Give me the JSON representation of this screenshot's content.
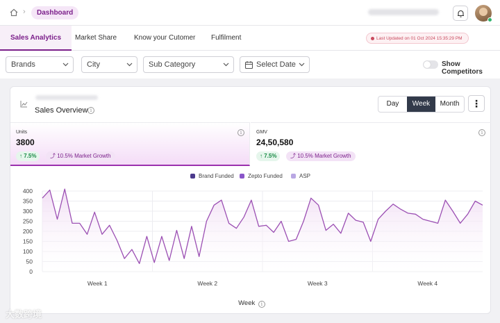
{
  "breadcrumb": {
    "current": "Dashboard",
    "separator": "›"
  },
  "tabs": [
    {
      "label": "Sales Analytics",
      "active": true
    },
    {
      "label": "Market Share",
      "active": false
    },
    {
      "label": "Know your Cutomer",
      "active": false
    },
    {
      "label": "Fulfilment",
      "active": false
    }
  ],
  "last_updated": "Last Updated on 01 Oct 2024 15:35:29 PM",
  "filters": {
    "brands": "Brands",
    "city": "City",
    "sub_category": "Sub Category",
    "date": "Select Date",
    "show_competitors": "Show Competitors",
    "show_competitors_on": false
  },
  "card": {
    "title": "Sales Overview",
    "granularity": [
      "Day",
      "Week",
      "Month"
    ],
    "active_granularity": "Week",
    "more_icon": "⋮"
  },
  "metrics": [
    {
      "label": "Units",
      "value": "3800",
      "change": "7.5%",
      "market_growth": "10.5% Market Growth",
      "selected": true
    },
    {
      "label": "GMV",
      "value": "24,50,580",
      "change": "7.5%",
      "market_growth": "10.5% Market Growth",
      "selected": false
    }
  ],
  "colors": {
    "accent": "#7b1f8a",
    "line": "#9b4fb3",
    "area": "#f1ddf4",
    "brand_funded": "#4b3a8c",
    "zepto_funded": "#8a55c9",
    "asp": "#b9a7e3"
  },
  "watermark": "大数跨境",
  "chart_data": {
    "type": "area",
    "legend": [
      "Brand Funded",
      "Zepto Funded",
      "ASP"
    ],
    "xlabel": "Week",
    "ylabel": "",
    "ylim": [
      0,
      400
    ],
    "yticks": [
      0,
      50,
      100,
      150,
      200,
      250,
      300,
      350,
      400
    ],
    "xticks": [
      "Week 1",
      "Week 2",
      "Week 3",
      "Week 4"
    ],
    "grid": true,
    "values": [
      365,
      405,
      260,
      410,
      240,
      240,
      185,
      295,
      185,
      230,
      155,
      65,
      110,
      40,
      175,
      45,
      175,
      55,
      205,
      65,
      225,
      75,
      250,
      330,
      355,
      240,
      215,
      270,
      355,
      225,
      230,
      195,
      250,
      150,
      160,
      250,
      365,
      330,
      205,
      235,
      190,
      290,
      255,
      245,
      150,
      260,
      300,
      335,
      310,
      290,
      285,
      260,
      250,
      240,
      355,
      300,
      240,
      285,
      350,
      330
    ]
  }
}
